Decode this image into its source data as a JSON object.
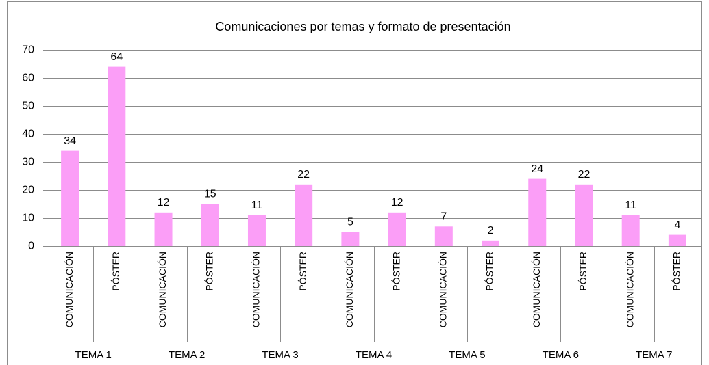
{
  "chart_data": {
    "type": "bar",
    "title": "Comunicaciones por temas y formato de presentación",
    "categories": [
      "COMUNICACIÓN",
      "PÓSTER",
      "COMUNICACIÓN",
      "PÓSTER",
      "COMUNICACIÓN",
      "PÓSTER",
      "COMUNICACIÓN",
      "PÓSTER",
      "COMUNICACIÓN",
      "PÓSTER",
      "COMUNICACIÓN",
      "PÓSTER",
      "COMUNICACIÓN",
      "PÓSTER"
    ],
    "groups": [
      "TEMA 1",
      "TEMA 2",
      "TEMA 3",
      "TEMA 4",
      "TEMA 5",
      "TEMA 6",
      "TEMA 7"
    ],
    "values": [
      34,
      64,
      12,
      15,
      11,
      22,
      5,
      12,
      7,
      2,
      24,
      22,
      11,
      4
    ],
    "color": "#fb9ef7",
    "ylim": [
      0,
      70
    ],
    "yticks": [
      0,
      10,
      20,
      30,
      40,
      50,
      60,
      70
    ],
    "grid": true
  }
}
